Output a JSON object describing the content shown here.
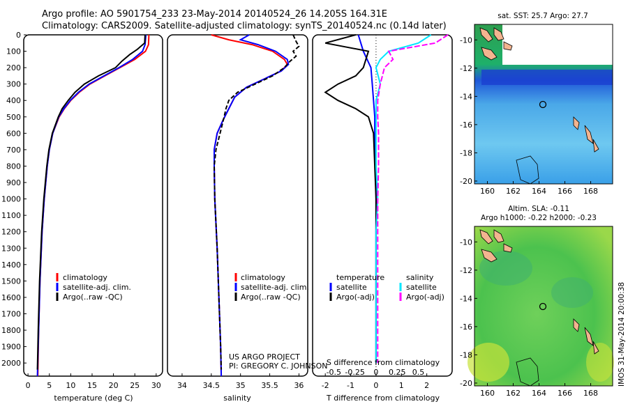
{
  "header": {
    "title_line1": "Argo profile: AO 5901754_233 23-May-2014 20140524_26 14.205S 164.31E",
    "title_line2": "Climatology: CARS2009. Satellite-adjusted climatology: synTS_20140524.nc (0.14d later)"
  },
  "colors": {
    "climatology": "#ff0000",
    "satellite": "#0000ff",
    "argo": "#000000",
    "sal_satellite": "#00e6ff",
    "sal_argo": "#ff00ff"
  },
  "depth_ticks": [
    "0",
    "100",
    "200",
    "300",
    "400",
    "500",
    "600",
    "700",
    "800",
    "900",
    "1000",
    "1100",
    "1200",
    "1300",
    "1400",
    "1500",
    "1600",
    "1700",
    "1800",
    "1900",
    "2000"
  ],
  "chart_data": [
    {
      "type": "line",
      "xlabel": "temperature (deg C)",
      "xlim": [
        -1,
        31.5
      ],
      "ylim": [
        2080,
        0
      ],
      "xticks": [
        "0",
        "5",
        "10",
        "15",
        "20",
        "25",
        "30"
      ],
      "legend": [
        "climatology",
        "satellite-adj. clim.",
        "Argo(..raw -QC)"
      ],
      "series": [
        {
          "name": "climatology",
          "y": [
            0,
            60,
            100,
            150,
            200,
            250,
            300,
            350,
            400,
            450,
            500,
            600,
            700,
            800,
            1000,
            1200,
            1500,
            1800,
            2080
          ],
          "x": [
            28.3,
            28.2,
            27.5,
            25.0,
            21.5,
            18.0,
            14.5,
            12.0,
            10.0,
            8.5,
            7.3,
            5.8,
            5.0,
            4.5,
            3.8,
            3.3,
            2.8,
            2.5,
            2.3
          ]
        },
        {
          "name": "satellite-adj. clim.",
          "y": [
            0,
            60,
            100,
            150,
            200,
            250,
            300,
            350,
            400,
            450,
            500,
            600,
            700,
            800,
            1000,
            1200,
            1500,
            1800,
            2080
          ],
          "x": [
            27.6,
            27.4,
            26.8,
            24.5,
            21.3,
            17.8,
            14.3,
            11.8,
            9.9,
            8.4,
            7.2,
            5.8,
            5.0,
            4.5,
            3.8,
            3.3,
            2.8,
            2.5,
            2.2
          ]
        },
        {
          "name": "Argo(..raw -QC)",
          "y": [
            0,
            50,
            90,
            120,
            160,
            200,
            250,
            300,
            350,
            400,
            450,
            500,
            600,
            700,
            800,
            1000,
            1200,
            1500,
            1800,
            2040
          ],
          "x": [
            27.4,
            27.3,
            25.5,
            23.8,
            22.0,
            20.5,
            16.5,
            13.2,
            11.0,
            9.4,
            8.0,
            7.1,
            5.7,
            4.9,
            4.4,
            3.7,
            3.2,
            2.7,
            2.4,
            2.2
          ]
        }
      ]
    },
    {
      "type": "line",
      "xlabel": "salinity",
      "xlim": [
        33.75,
        36.15
      ],
      "ylim": [
        2080,
        0
      ],
      "xticks": [
        "34",
        "34.5",
        "35",
        "35.5",
        "36"
      ],
      "legend": [
        "climatology",
        "satellite-adj. clim.",
        "Argo(..raw -QC)"
      ],
      "annotation": [
        "US ARGO PROJECT",
        "PI: GREGORY C. JOHNSON"
      ],
      "series": [
        {
          "name": "climatology",
          "y": [
            0,
            30,
            60,
            100,
            150,
            180,
            220,
            270,
            320,
            380,
            450,
            520,
            600,
            700,
            800,
            1000,
            1300,
            1600,
            1900,
            2080
          ],
          "x": [
            34.5,
            34.8,
            35.2,
            35.55,
            35.75,
            35.8,
            35.7,
            35.4,
            35.1,
            34.9,
            34.8,
            34.7,
            34.6,
            34.55,
            34.55,
            34.56,
            34.6,
            34.63,
            34.66,
            34.67
          ]
        },
        {
          "name": "satellite-adj. clim.",
          "y": [
            0,
            30,
            60,
            100,
            150,
            180,
            220,
            270,
            320,
            380,
            450,
            520,
            600,
            700,
            800,
            1000,
            1300,
            1600,
            1900,
            2080
          ],
          "x": [
            35.15,
            35.0,
            35.3,
            35.6,
            35.8,
            35.82,
            35.7,
            35.4,
            35.1,
            34.9,
            34.8,
            34.7,
            34.6,
            34.55,
            34.55,
            34.56,
            34.6,
            34.63,
            34.66,
            34.67
          ]
        },
        {
          "name": "Argo(..raw -QC)",
          "y": [
            0,
            40,
            70,
            100,
            130,
            160,
            200,
            250,
            300,
            350,
            400,
            450,
            500,
            600,
            700,
            800,
            1000,
            1300,
            1600,
            1900,
            2040
          ],
          "x": [
            35.9,
            35.95,
            36.0,
            35.9,
            35.95,
            35.85,
            35.75,
            35.55,
            35.25,
            34.95,
            34.8,
            34.75,
            34.72,
            34.65,
            34.58,
            34.55,
            34.56,
            34.6,
            34.63,
            34.66,
            34.67
          ]
        }
      ]
    },
    {
      "type": "line",
      "xlabel": "T difference from climatology",
      "xlabel_top": "S difference from climatology",
      "xlim_T": [
        -2.5,
        3.0
      ],
      "xlim_S": [
        -0.75,
        0.9
      ],
      "ylim": [
        2080,
        0
      ],
      "xticks_T": [
        "-2",
        "-1",
        "0",
        "1",
        "2"
      ],
      "xticks_S": [
        "-0.5",
        "-0.25",
        "0",
        "0.25",
        "0.5"
      ],
      "legend_titles": [
        "temperature",
        "salinity"
      ],
      "legend": [
        "satellite",
        "Argo(-adj)",
        "satellite",
        "Argo(-adj)"
      ],
      "series": [
        {
          "name": "satellite",
          "y": [
            0,
            50,
            100,
            200,
            300,
            400,
            500,
            600,
            800,
            1000,
            1500,
            2000
          ],
          "x": [
            -0.7,
            -0.6,
            -0.5,
            -0.2,
            -0.15,
            -0.1,
            -0.05,
            -0.05,
            0,
            0,
            0,
            0
          ]
        },
        {
          "name": "Argo(-adj)",
          "y": [
            0,
            50,
            100,
            200,
            250,
            300,
            350,
            400,
            450,
            500,
            600,
            800,
            1000,
            1500,
            2000
          ],
          "x": [
            -0.8,
            -2.0,
            -0.3,
            -0.5,
            -0.8,
            -1.5,
            -2.0,
            -1.5,
            -0.8,
            -0.3,
            -0.1,
            -0.05,
            0,
            0,
            0
          ]
        },
        {
          "name": "satellite",
          "y": [
            0,
            50,
            100,
            150,
            200,
            300,
            400,
            500,
            600,
            800,
            1000,
            1200,
            1500,
            2000
          ],
          "x": [
            0.65,
            0.5,
            0.15,
            0.05,
            0.0,
            0.05,
            0.0,
            0.0,
            0.0,
            0.0,
            0.02,
            0.0,
            0.0,
            0.0
          ]
        },
        {
          "name": "Argo(-adj)",
          "y": [
            0,
            50,
            100,
            150,
            200,
            300,
            400,
            500,
            600,
            800,
            1000,
            1500,
            2000
          ],
          "x": [
            0.85,
            0.7,
            0.15,
            0.2,
            0.1,
            0.05,
            0.02,
            0.02,
            0.03,
            0.03,
            0.02,
            0.02,
            0.02
          ]
        }
      ]
    },
    {
      "type": "heatmap",
      "title": "sat. SST: 25.7 Argo: 27.7",
      "xticks": [
        "160",
        "162",
        "164",
        "166",
        "168"
      ],
      "yticks": [
        "-10",
        "-12",
        "-14",
        "-16",
        "-18",
        "-20"
      ]
    },
    {
      "type": "heatmap",
      "title_line1": "Altim. SLA: -0.11",
      "title_line2": "Argo h1000: -0.22 h2000: -0.23",
      "xticks": [
        "160",
        "162",
        "164",
        "166",
        "168"
      ],
      "yticks": [
        "-10",
        "-12",
        "-14",
        "-16",
        "-18",
        "-20"
      ]
    }
  ],
  "footer_stamp": "IMOS 31-May-2014 20:00:38"
}
